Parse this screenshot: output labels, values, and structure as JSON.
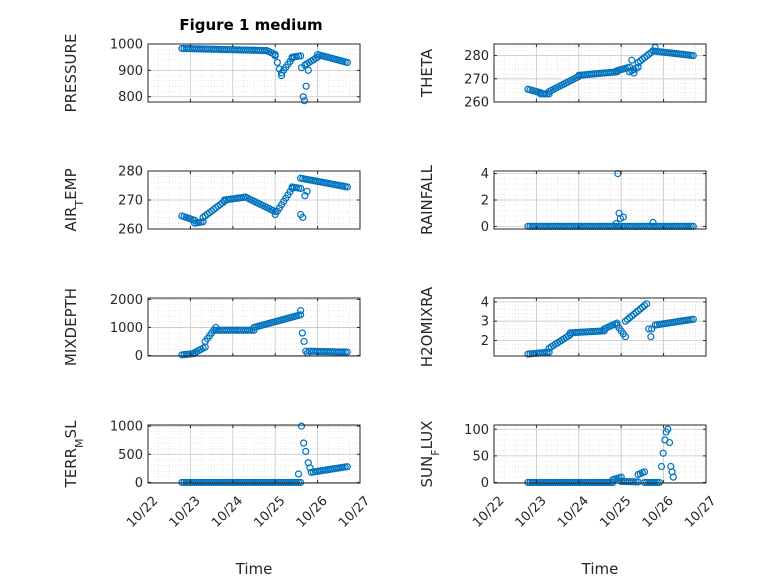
{
  "figure": {
    "title": "Figure 1 medium"
  },
  "chart_data": [
    {
      "type": "scatter",
      "ylabel": "PRESSURE",
      "xlabel": "",
      "ylim": [
        780,
        1000
      ],
      "yticks": [
        800,
        900,
        1000
      ],
      "grid": true,
      "marker": "open-circle",
      "color": "#0072BD",
      "segments": [
        {
          "from": 0.8,
          "to": 2.8,
          "y0": 983,
          "y1": 975,
          "step": 0.05
        },
        {
          "from": 2.8,
          "to": 3.0,
          "y0": 975,
          "y1": 960,
          "step": 0.05
        },
        {
          "from": 3.0,
          "to": 3.15,
          "y0": 955,
          "y1": 880,
          "step": 0.05
        },
        {
          "from": 3.15,
          "to": 3.4,
          "y0": 890,
          "y1": 945,
          "step": 0.05
        },
        {
          "from": 3.4,
          "to": 3.6,
          "y0": 950,
          "y1": 955,
          "step": 0.05
        },
        {
          "from": 3.7,
          "to": 4.0,
          "y0": 920,
          "y1": 950,
          "step": 0.05
        },
        {
          "from": 4.0,
          "to": 4.7,
          "y0": 960,
          "y1": 930,
          "step": 0.05
        }
      ],
      "points": [
        [
          3.62,
          910
        ],
        [
          3.66,
          800
        ],
        [
          3.69,
          785
        ],
        [
          3.73,
          840
        ],
        [
          3.78,
          900
        ]
      ]
    },
    {
      "type": "scatter",
      "ylabel": "THETA",
      "xlabel": "",
      "ylim": [
        260,
        285
      ],
      "yticks": [
        260,
        270,
        280
      ],
      "grid": true,
      "marker": "open-circle",
      "color": "#0072BD",
      "segments": [
        {
          "from": 0.8,
          "to": 1.1,
          "y0": 265.5,
          "y1": 264,
          "step": 0.05
        },
        {
          "from": 1.1,
          "to": 1.3,
          "y0": 263.5,
          "y1": 263.5,
          "step": 0.05
        },
        {
          "from": 1.3,
          "to": 2.0,
          "y0": 264.5,
          "y1": 271,
          "step": 0.05
        },
        {
          "from": 2.0,
          "to": 2.9,
          "y0": 271.5,
          "y1": 273,
          "step": 0.05
        },
        {
          "from": 2.9,
          "to": 3.2,
          "y0": 273.5,
          "y1": 275,
          "step": 0.05
        },
        {
          "from": 3.2,
          "to": 3.4,
          "y0": 273,
          "y1": 275,
          "step": 0.05
        },
        {
          "from": 3.4,
          "to": 3.75,
          "y0": 277,
          "y1": 282,
          "step": 0.05
        },
        {
          "from": 3.75,
          "to": 4.7,
          "y0": 282,
          "y1": 280,
          "step": 0.05
        }
      ],
      "points": [
        [
          3.25,
          278
        ],
        [
          3.3,
          272.5
        ],
        [
          3.8,
          283.5
        ]
      ]
    },
    {
      "type": "scatter",
      "ylabel": "AIR_TEMP",
      "xlabel": "",
      "ylim": [
        260,
        280
      ],
      "yticks": [
        260,
        270,
        280
      ],
      "grid": true,
      "marker": "open-circle",
      "color": "#0072BD",
      "segments": [
        {
          "from": 0.8,
          "to": 1.1,
          "y0": 264.5,
          "y1": 263,
          "step": 0.05
        },
        {
          "from": 1.1,
          "to": 1.3,
          "y0": 262,
          "y1": 262.5,
          "step": 0.05
        },
        {
          "from": 1.3,
          "to": 1.8,
          "y0": 264,
          "y1": 269.5,
          "step": 0.05
        },
        {
          "from": 1.8,
          "to": 2.3,
          "y0": 270,
          "y1": 271,
          "step": 0.05
        },
        {
          "from": 2.3,
          "to": 3.0,
          "y0": 271,
          "y1": 266,
          "step": 0.05
        },
        {
          "from": 3.0,
          "to": 3.4,
          "y0": 265,
          "y1": 274,
          "step": 0.05
        },
        {
          "from": 3.4,
          "to": 3.6,
          "y0": 274.5,
          "y1": 274,
          "step": 0.05
        },
        {
          "from": 3.6,
          "to": 4.7,
          "y0": 277.5,
          "y1": 274.5,
          "step": 0.05
        }
      ],
      "points": [
        [
          3.6,
          265
        ],
        [
          3.65,
          264
        ],
        [
          3.7,
          271.5
        ],
        [
          3.75,
          273
        ]
      ]
    },
    {
      "type": "scatter",
      "ylabel": "RAINFALL",
      "xlabel": "",
      "ylim": [
        -0.2,
        4.2
      ],
      "yticks": [
        0,
        2,
        4
      ],
      "grid": true,
      "marker": "open-circle",
      "color": "#0072BD",
      "segments": [
        {
          "from": 0.8,
          "to": 4.7,
          "y0": 0,
          "y1": 0,
          "step": 0.05
        }
      ],
      "points": [
        [
          2.88,
          0.2
        ],
        [
          2.92,
          4.0
        ],
        [
          2.95,
          1.0
        ],
        [
          2.98,
          0.6
        ],
        [
          3.05,
          0.7
        ],
        [
          3.75,
          0.3
        ]
      ]
    },
    {
      "type": "scatter",
      "ylabel": "MIXDEPTH",
      "xlabel": "",
      "ylim": [
        -20,
        2050
      ],
      "yticks": [
        0,
        1000,
        2000
      ],
      "grid": true,
      "marker": "open-circle",
      "color": "#0072BD",
      "segments": [
        {
          "from": 0.8,
          "to": 1.1,
          "y0": 20,
          "y1": 70,
          "step": 0.05
        },
        {
          "from": 1.1,
          "to": 1.35,
          "y0": 100,
          "y1": 300,
          "step": 0.05
        },
        {
          "from": 1.35,
          "to": 1.6,
          "y0": 500,
          "y1": 1000,
          "step": 0.05
        },
        {
          "from": 1.6,
          "to": 2.5,
          "y0": 900,
          "y1": 900,
          "step": 0.05
        },
        {
          "from": 2.5,
          "to": 3.6,
          "y0": 1000,
          "y1": 1450,
          "step": 0.05
        },
        {
          "from": 3.8,
          "to": 4.7,
          "y0": 150,
          "y1": 120,
          "step": 0.05
        }
      ],
      "points": [
        [
          3.6,
          1600
        ],
        [
          3.64,
          800
        ],
        [
          3.68,
          500
        ],
        [
          3.72,
          150
        ],
        [
          3.76,
          80
        ]
      ]
    },
    {
      "type": "scatter",
      "ylabel": "H2OMIXRA",
      "xlabel": "",
      "ylim": [
        1.2,
        4.2
      ],
      "yticks": [
        2,
        3,
        4
      ],
      "grid": true,
      "marker": "open-circle",
      "color": "#0072BD",
      "segments": [
        {
          "from": 0.8,
          "to": 1.3,
          "y0": 1.3,
          "y1": 1.4,
          "step": 0.05
        },
        {
          "from": 1.3,
          "to": 1.8,
          "y0": 1.6,
          "y1": 2.3,
          "step": 0.05
        },
        {
          "from": 1.8,
          "to": 2.6,
          "y0": 2.4,
          "y1": 2.5,
          "step": 0.05
        },
        {
          "from": 2.6,
          "to": 2.9,
          "y0": 2.6,
          "y1": 2.9,
          "step": 0.05
        },
        {
          "from": 2.9,
          "to": 3.1,
          "y0": 2.8,
          "y1": 2.2,
          "step": 0.05
        },
        {
          "from": 3.1,
          "to": 3.6,
          "y0": 3.0,
          "y1": 3.9,
          "step": 0.05
        },
        {
          "from": 3.8,
          "to": 4.7,
          "y0": 2.8,
          "y1": 3.1,
          "step": 0.05
        }
      ],
      "points": [
        [
          3.65,
          2.6
        ],
        [
          3.7,
          2.2
        ],
        [
          3.72,
          2.6
        ]
      ]
    },
    {
      "type": "scatter",
      "ylabel": "TERR_MSL",
      "xlabel": "Time",
      "ylim": [
        -10,
        1020
      ],
      "yticks": [
        0,
        500,
        1000
      ],
      "grid": true,
      "marker": "open-circle",
      "color": "#0072BD",
      "segments": [
        {
          "from": 0.8,
          "to": 3.6,
          "y0": 0,
          "y1": 0,
          "step": 0.05
        },
        {
          "from": 3.85,
          "to": 4.7,
          "y0": 180,
          "y1": 280,
          "step": 0.05
        }
      ],
      "points": [
        [
          3.55,
          150
        ],
        [
          3.62,
          1000
        ],
        [
          3.67,
          700
        ],
        [
          3.72,
          550
        ],
        [
          3.78,
          350
        ],
        [
          3.82,
          260
        ]
      ]
    },
    {
      "type": "scatter",
      "ylabel": "SUN_FLUX",
      "xlabel": "Time",
      "ylim": [
        -1,
        108
      ],
      "yticks": [
        0,
        50,
        100
      ],
      "grid": true,
      "marker": "open-circle",
      "color": "#0072BD",
      "segments": [
        {
          "from": 0.8,
          "to": 2.8,
          "y0": 0,
          "y1": 0,
          "step": 0.05
        },
        {
          "from": 2.8,
          "to": 3.0,
          "y0": 5,
          "y1": 10,
          "step": 0.05
        },
        {
          "from": 3.0,
          "to": 3.4,
          "y0": 2,
          "y1": 1,
          "step": 0.05
        },
        {
          "from": 3.4,
          "to": 3.55,
          "y0": 15,
          "y1": 20,
          "step": 0.05
        },
        {
          "from": 3.55,
          "to": 3.9,
          "y0": 0,
          "y1": 0,
          "step": 0.05
        }
      ],
      "points": [
        [
          3.95,
          30
        ],
        [
          3.99,
          55
        ],
        [
          4.03,
          80
        ],
        [
          4.06,
          95
        ],
        [
          4.1,
          100
        ],
        [
          4.14,
          75
        ],
        [
          4.17,
          30
        ],
        [
          4.2,
          20
        ],
        [
          4.23,
          10
        ]
      ]
    }
  ],
  "x_axis": {
    "ticks": [
      0,
      1,
      2,
      3,
      4,
      5
    ],
    "tick_labels": [
      "10/22",
      "10/23",
      "10/24",
      "10/25",
      "10/26",
      "10/27"
    ]
  }
}
